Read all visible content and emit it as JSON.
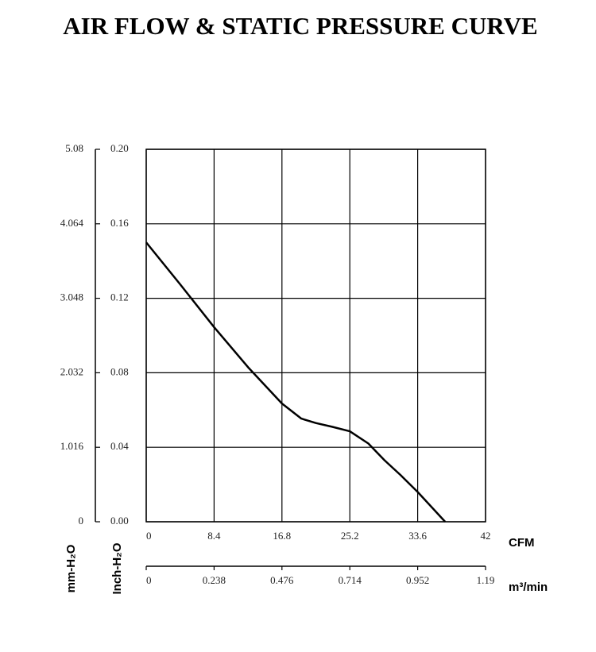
{
  "chart_data": {
    "type": "line",
    "title": "AIR FLOW & STATIC PRESSURE CURVE",
    "x_label": "CFM",
    "x2_label": "m³/min",
    "y_label": "Inch-H₂O",
    "y2_label": "mm-H₂O",
    "x": [
      0,
      4.2,
      8.4,
      12.6,
      16.8,
      19.2,
      21,
      23,
      25.2,
      27.5,
      29.5,
      31.5,
      33.6,
      37
    ],
    "values": [
      0.15,
      0.1275,
      0.1045,
      0.083,
      0.0635,
      0.0554,
      0.053,
      0.051,
      0.0486,
      0.042,
      0.033,
      0.025,
      0.016,
      0
    ],
    "color": "#000000",
    "xlim": [
      0,
      42
    ],
    "xticks": [
      0,
      8.4,
      16.8,
      25.2,
      33.6,
      42
    ],
    "x2lim": [
      0,
      1.19
    ],
    "x2ticks": [
      0,
      0.238,
      0.476,
      0.714,
      0.952,
      1.19
    ],
    "ylim": [
      0,
      0.2
    ],
    "yticks": [
      {
        "value": 0,
        "label": "0.00"
      },
      0.04,
      0.08,
      0.12,
      0.16,
      {
        "value": 0.2,
        "label": "0.20"
      }
    ],
    "y2lim": [
      0,
      5.08
    ],
    "y2ticks": [
      0,
      1.016,
      2.032,
      3.048,
      4.064,
      5.08
    ],
    "grid": true
  }
}
